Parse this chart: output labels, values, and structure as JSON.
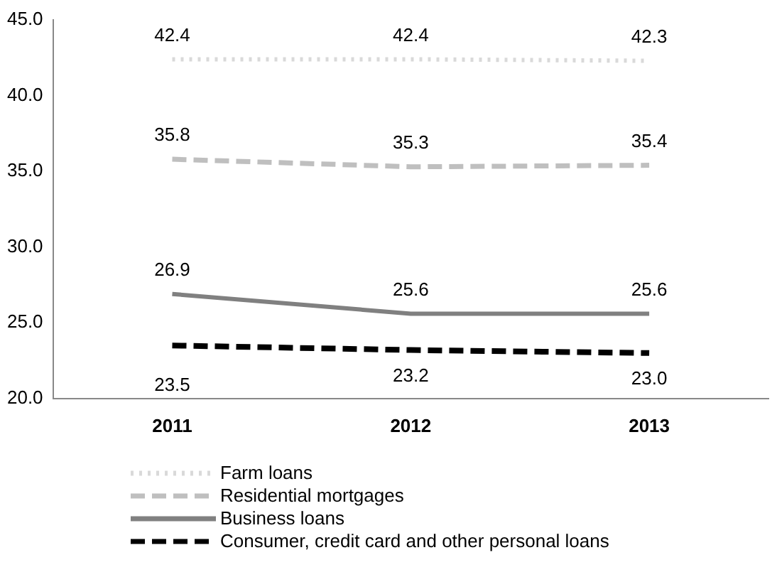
{
  "chart_data": {
    "type": "line",
    "categories": [
      "2011",
      "2012",
      "2013"
    ],
    "series": [
      {
        "name": "Farm loans",
        "color": "#d9d9d9",
        "line_style": "dotted",
        "values": [
          42.4,
          42.4,
          42.3
        ],
        "value_labels": [
          "42.4",
          "42.4",
          "42.3"
        ]
      },
      {
        "name": "Residential mortgages",
        "color": "#bfbfbf",
        "line_style": "dashed",
        "values": [
          35.8,
          35.3,
          35.4
        ],
        "value_labels": [
          "35.8",
          "35.3",
          "35.4"
        ]
      },
      {
        "name": "Business loans",
        "color": "#808080",
        "line_style": "solid",
        "values": [
          26.9,
          25.6,
          25.6
        ],
        "value_labels": [
          "26.9",
          "25.6",
          "25.6"
        ]
      },
      {
        "name": "Consumer, credit card and other personal loans",
        "color": "#000000",
        "line_style": "dashed",
        "values": [
          23.5,
          23.2,
          23.0
        ],
        "value_labels": [
          "23.5",
          "23.2",
          "23.0"
        ]
      }
    ],
    "ylim": [
      20,
      45
    ],
    "yticks": [
      {
        "value": 20,
        "label": "20.0"
      },
      {
        "value": 25,
        "label": "25.0"
      },
      {
        "value": 30,
        "label": "30.0"
      },
      {
        "value": 35,
        "label": "35.0"
      },
      {
        "value": 40,
        "label": "40.0"
      },
      {
        "value": 45,
        "label": "45.0"
      }
    ],
    "grid": false,
    "legend": "bottom",
    "marker": "none"
  }
}
